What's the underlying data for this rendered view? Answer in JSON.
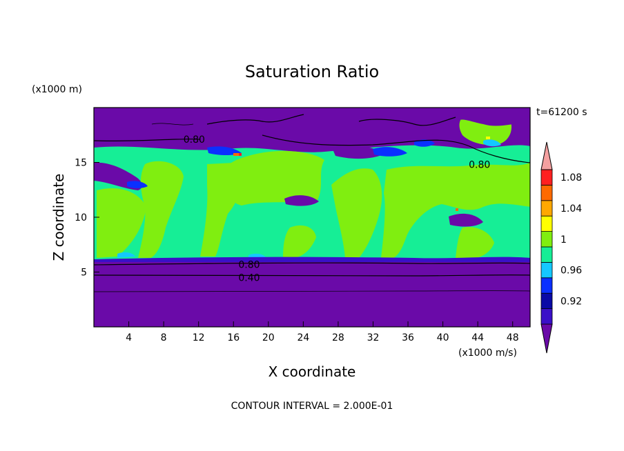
{
  "chart_data": {
    "type": "heatmap",
    "title": "Saturation Ratio",
    "xlabel": "X coordinate",
    "ylabel": "Z coordinate",
    "x_unit": "(x1000 m/s)",
    "y_unit": "(x1000 m)",
    "time_label": "t=61200 s",
    "footer": "CONTOUR INTERVAL = 2.000E-01",
    "xlim": [
      0,
      50
    ],
    "ylim": [
      0,
      20
    ],
    "x_ticks": [
      4,
      8,
      12,
      16,
      20,
      24,
      28,
      32,
      36,
      40,
      44,
      48
    ],
    "y_ticks": [
      5,
      10,
      15
    ],
    "colorbar": {
      "levels": [
        0.92,
        0.96,
        1,
        1.04,
        1.08
      ],
      "labels": [
        "0.92",
        "0.96",
        "1",
        "1.04",
        "1.08"
      ],
      "colors": [
        "#6a0aa8",
        "#3a10c8",
        "#0a0aa6",
        "#0a30ff",
        "#14c8ff",
        "#16ee96",
        "#80ee10",
        "#ffff00",
        "#ffa800",
        "#ff6a00",
        "#ff2020",
        "#f4a0a0"
      ]
    },
    "contour_labels": [
      {
        "text": "0.80",
        "x": 11.5,
        "y": 17.1
      },
      {
        "text": "0.80",
        "x": 44.2,
        "y": 14.8
      },
      {
        "text": "0.80",
        "x": 17.8,
        "y": 5.7
      },
      {
        "text": "0.40",
        "x": 17.8,
        "y": 4.5
      }
    ],
    "regions": {
      "lower_layer": {
        "z": [
          0,
          6.1
        ],
        "value": "below 0.92",
        "contours": [
          0.4,
          0.8
        ]
      },
      "mid_layer": {
        "z": [
          6.1,
          15.5
        ],
        "value": "0.98–1.02 mixed"
      },
      "upper_layer": {
        "z": [
          15.5,
          20
        ],
        "value": "below 0.92 with patches near 1"
      }
    }
  }
}
